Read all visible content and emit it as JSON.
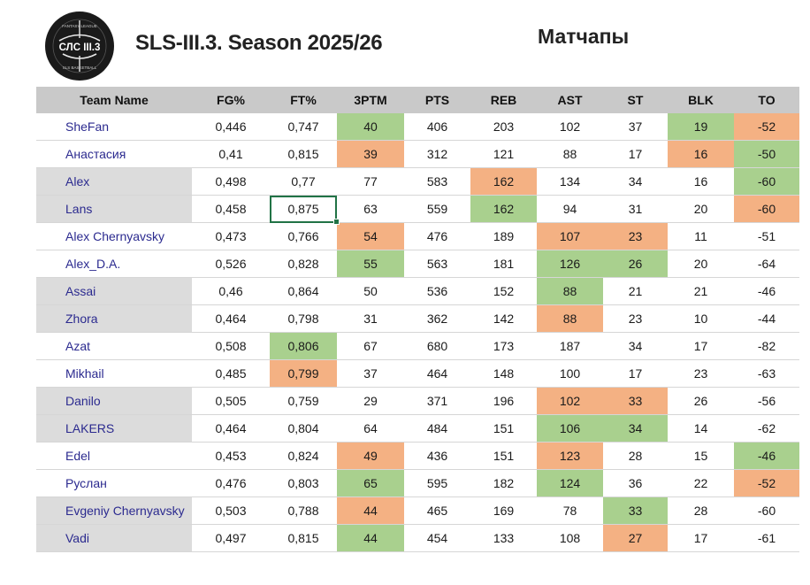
{
  "header": {
    "logo_text": "СЛС III.3",
    "logo_ring_top": "FANTASY LEAGUE",
    "logo_ring_bottom": "SLS BASKETBALL",
    "title": "SLS-III.3. Season 2025/26",
    "subtitle": "Матчапы"
  },
  "colors": {
    "good": "#a9d08e",
    "bad": "#f4b183",
    "header_bg": "#c9c9c9",
    "name_text": "#2b2a8f"
  },
  "table": {
    "columns": [
      "Team Name",
      "FG%",
      "FT%",
      "3PTM",
      "PTS",
      "REB",
      "AST",
      "ST",
      "BLK",
      "TO"
    ],
    "rows": [
      {
        "name": "SheFan",
        "stats": [
          "0,446",
          "0,747",
          "40",
          "406",
          "203",
          "102",
          "37",
          "19",
          "-52"
        ],
        "hl": [
          "",
          "",
          "g",
          "",
          "",
          "",
          "",
          "g",
          "o"
        ]
      },
      {
        "name": "Анастасия",
        "stats": [
          "0,41",
          "0,815",
          "39",
          "312",
          "121",
          "88",
          "17",
          "16",
          "-50"
        ],
        "hl": [
          "",
          "",
          "o",
          "",
          "",
          "",
          "",
          "o",
          "g"
        ]
      },
      {
        "name": "Alex",
        "stats": [
          "0,498",
          "0,77",
          "77",
          "583",
          "162",
          "134",
          "34",
          "16",
          "-60"
        ],
        "hl": [
          "",
          "",
          "",
          "",
          "o",
          "",
          "",
          "",
          "g"
        ]
      },
      {
        "name": "Lans",
        "stats": [
          "0,458",
          "0,875",
          "63",
          "559",
          "162",
          "94",
          "31",
          "20",
          "-60"
        ],
        "hl": [
          "",
          "",
          "",
          "",
          "g",
          "",
          "",
          "",
          "o"
        ]
      },
      {
        "name": "Alex Chernyavsky",
        "stats": [
          "0,473",
          "0,766",
          "54",
          "476",
          "189",
          "107",
          "23",
          "11",
          "-51"
        ],
        "hl": [
          "",
          "",
          "o",
          "",
          "",
          "o",
          "o",
          "",
          ""
        ]
      },
      {
        "name": "Alex_D.A.",
        "stats": [
          "0,526",
          "0,828",
          "55",
          "563",
          "181",
          "126",
          "26",
          "20",
          "-64"
        ],
        "hl": [
          "",
          "",
          "g",
          "",
          "",
          "g",
          "g",
          "",
          ""
        ]
      },
      {
        "name": "Assai",
        "stats": [
          "0,46",
          "0,864",
          "50",
          "536",
          "152",
          "88",
          "21",
          "21",
          "-46"
        ],
        "hl": [
          "",
          "",
          "",
          "",
          "",
          "g",
          "",
          "",
          ""
        ]
      },
      {
        "name": "Zhora",
        "stats": [
          "0,464",
          "0,798",
          "31",
          "362",
          "142",
          "88",
          "23",
          "10",
          "-44"
        ],
        "hl": [
          "",
          "",
          "",
          "",
          "",
          "o",
          "",
          "",
          ""
        ]
      },
      {
        "name": "Azat",
        "stats": [
          "0,508",
          "0,806",
          "67",
          "680",
          "173",
          "187",
          "34",
          "17",
          "-82"
        ],
        "hl": [
          "",
          "g",
          "",
          "",
          "",
          "",
          "",
          "",
          ""
        ]
      },
      {
        "name": "Mikhail",
        "stats": [
          "0,485",
          "0,799",
          "37",
          "464",
          "148",
          "100",
          "17",
          "23",
          "-63"
        ],
        "hl": [
          "",
          "o",
          "",
          "",
          "",
          "",
          "",
          "",
          ""
        ]
      },
      {
        "name": "Danilo",
        "stats": [
          "0,505",
          "0,759",
          "29",
          "371",
          "196",
          "102",
          "33",
          "26",
          "-56"
        ],
        "hl": [
          "",
          "",
          "",
          "",
          "",
          "o",
          "o",
          "",
          ""
        ]
      },
      {
        "name": "LAKERS",
        "stats": [
          "0,464",
          "0,804",
          "64",
          "484",
          "151",
          "106",
          "34",
          "14",
          "-62"
        ],
        "hl": [
          "",
          "",
          "",
          "",
          "",
          "g",
          "g",
          "",
          ""
        ]
      },
      {
        "name": "Edel",
        "stats": [
          "0,453",
          "0,824",
          "49",
          "436",
          "151",
          "123",
          "28",
          "15",
          "-46"
        ],
        "hl": [
          "",
          "",
          "o",
          "",
          "",
          "o",
          "",
          "",
          "g"
        ]
      },
      {
        "name": "Руслан",
        "stats": [
          "0,476",
          "0,803",
          "65",
          "595",
          "182",
          "124",
          "36",
          "22",
          "-52"
        ],
        "hl": [
          "",
          "",
          "g",
          "",
          "",
          "g",
          "",
          "",
          "o"
        ]
      },
      {
        "name": "Evgeniy Chernyavsky",
        "stats": [
          "0,503",
          "0,788",
          "44",
          "465",
          "169",
          "78",
          "33",
          "28",
          "-60"
        ],
        "hl": [
          "",
          "",
          "o",
          "",
          "",
          "",
          "g",
          "",
          ""
        ]
      },
      {
        "name": "Vadi",
        "stats": [
          "0,497",
          "0,815",
          "44",
          "454",
          "133",
          "108",
          "27",
          "17",
          "-61"
        ],
        "hl": [
          "",
          "",
          "g",
          "",
          "",
          "",
          "o",
          "",
          ""
        ]
      }
    ]
  }
}
